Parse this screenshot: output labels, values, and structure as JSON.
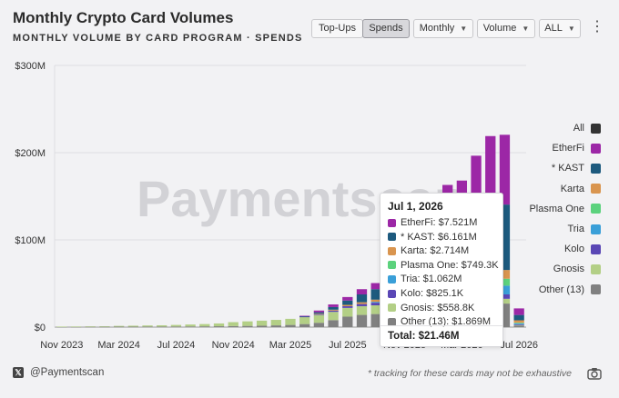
{
  "header": {
    "title": "Monthly Crypto Card Volumes",
    "subtitle": "MONTHLY VOLUME BY CARD PROGRAM · SPENDS"
  },
  "controls": {
    "topups_label": "Top-Ups",
    "spends_label": "Spends",
    "period_label": "Monthly",
    "metric_label": "Volume",
    "range_label": "ALL",
    "more_icon": "kebab-menu-icon"
  },
  "watermark": "Paymentscan",
  "footer": {
    "handle": "@Paymentscan",
    "x_icon": "x-logo-icon",
    "note": "* tracking for these cards may not be exhaustive",
    "camera_icon": "camera-icon"
  },
  "tooltip": {
    "date": "Jul 1, 2026",
    "rows": [
      {
        "label": "EtherFi: $7.521M",
        "color": "#9c27a6"
      },
      {
        "label": "* KAST: $6.161M",
        "color": "#1d5a7e"
      },
      {
        "label": "Karta: $2.714M",
        "color": "#d9954f"
      },
      {
        "label": "Plasma One: $749.3K",
        "color": "#5cd27d"
      },
      {
        "label": "Tria: $1.062M",
        "color": "#3a9fd8"
      },
      {
        "label": "Kolo: $825.1K",
        "color": "#5a47b5"
      },
      {
        "label": "Gnosis: $558.8K",
        "color": "#b3cf86"
      },
      {
        "label": "Other (13): $1.869M",
        "color": "#808080"
      }
    ],
    "total": "Total: $21.46M"
  },
  "chart_data": {
    "type": "bar",
    "stacked": true,
    "x_tick_labels": [
      "Nov 2023",
      "Mar 2024",
      "Jul 2024",
      "Nov 2024",
      "Mar 2025",
      "Jul 2025",
      "Nov 2025",
      "Mar 2026",
      "Jul 2026"
    ],
    "y_tick_labels": [
      "$0",
      "$100M",
      "$200M",
      "$300M"
    ],
    "ylim": [
      0,
      300
    ],
    "y_unit": "$M",
    "grid": true,
    "legend_position": "right",
    "categories": [
      "Nov 2023",
      "Dec 2023",
      "Jan 2024",
      "Feb 2024",
      "Mar 2024",
      "Apr 2024",
      "May 2024",
      "Jun 2024",
      "Jul 2024",
      "Aug 2024",
      "Sep 2024",
      "Oct 2024",
      "Nov 2024",
      "Dec 2024",
      "Jan 2025",
      "Feb 2025",
      "Mar 2025",
      "Apr 2025",
      "May 2025",
      "Jun 2025",
      "Jul 2025",
      "Aug 2025",
      "Sep 2025",
      "Oct 2025",
      "Nov 2025",
      "Dec 2025",
      "Jan 2026",
      "Feb 2026",
      "Mar 2026",
      "Apr 2026",
      "May 2026",
      "Jun 2026",
      "Jul 2026"
    ],
    "legend": [
      {
        "name": "All",
        "color": "#333333"
      },
      {
        "name": "EtherFi",
        "color": "#9c27a6"
      },
      {
        "name": "* KAST",
        "color": "#1d5a7e"
      },
      {
        "name": "Karta",
        "color": "#d9954f"
      },
      {
        "name": "Plasma One",
        "color": "#5cd27d"
      },
      {
        "name": "Tria",
        "color": "#3a9fd8"
      },
      {
        "name": "Kolo",
        "color": "#5a47b5"
      },
      {
        "name": "Gnosis",
        "color": "#b3cf86"
      },
      {
        "name": "Other (13)",
        "color": "#808080"
      }
    ],
    "series": [
      {
        "name": "Other (13)",
        "color": "#808080",
        "values": [
          0.3,
          0.3,
          0.4,
          0.4,
          0.5,
          0.5,
          0.6,
          0.6,
          0.7,
          0.8,
          0.9,
          1.0,
          1.2,
          1.4,
          1.6,
          2.0,
          2.5,
          3.5,
          5,
          8,
          12,
          14,
          15,
          17,
          20,
          22,
          24,
          26,
          27,
          28,
          28,
          27,
          1.869
        ]
      },
      {
        "name": "Gnosis",
        "color": "#b3cf86",
        "values": [
          0.3,
          0.4,
          0.5,
          0.6,
          0.9,
          1.1,
          1.3,
          1.5,
          1.8,
          2.2,
          2.6,
          3.2,
          4.5,
          5.2,
          5.8,
          6.3,
          7,
          8,
          9,
          9.5,
          10,
          10,
          10,
          9.5,
          9,
          8.5,
          8,
          7.5,
          7,
          6.5,
          6,
          5.5,
          0.559
        ]
      },
      {
        "name": "Kolo",
        "color": "#5a47b5",
        "values": [
          0,
          0,
          0,
          0,
          0,
          0,
          0,
          0,
          0,
          0,
          0,
          0,
          0,
          0,
          0,
          0,
          0,
          0.5,
          1,
          1.5,
          2,
          2.5,
          3,
          3.5,
          4,
          4,
          4.5,
          4.5,
          5,
          5,
          5,
          5,
          0.825
        ]
      },
      {
        "name": "Tria",
        "color": "#3a9fd8",
        "values": [
          0,
          0,
          0,
          0,
          0,
          0,
          0,
          0,
          0,
          0,
          0,
          0,
          0,
          0,
          0,
          0,
          0,
          0,
          0,
          0,
          0,
          0,
          1,
          2,
          3,
          4,
          5,
          6,
          7,
          8,
          9,
          10,
          1.062
        ]
      },
      {
        "name": "Plasma One",
        "color": "#5cd27d",
        "values": [
          0,
          0,
          0,
          0,
          0,
          0,
          0,
          0,
          0,
          0,
          0,
          0,
          0,
          0,
          0,
          0,
          0,
          0,
          0,
          0,
          0,
          0,
          0,
          0,
          0,
          2,
          3,
          4,
          5,
          6,
          7,
          8,
          0.749
        ]
      },
      {
        "name": "Karta",
        "color": "#d9954f",
        "values": [
          0,
          0,
          0,
          0,
          0,
          0,
          0,
          0,
          0,
          0,
          0,
          0,
          0,
          0,
          0,
          0,
          0,
          0,
          0.5,
          1,
          1.5,
          2,
          2.5,
          3,
          3.5,
          4,
          5,
          6,
          7,
          8,
          9,
          10,
          2.714
        ]
      },
      {
        "name": "* KAST",
        "color": "#1d5a7e",
        "values": [
          0,
          0,
          0,
          0,
          0,
          0,
          0,
          0,
          0,
          0,
          0,
          0,
          0,
          0,
          0,
          0,
          0,
          0.5,
          1.5,
          3,
          5,
          9,
          12,
          15,
          20,
          25,
          35,
          45,
          55,
          65,
          80,
          75,
          6.161
        ]
      },
      {
        "name": "EtherFi",
        "color": "#9c27a6",
        "values": [
          0,
          0,
          0,
          0,
          0,
          0,
          0,
          0,
          0,
          0,
          0,
          0,
          0,
          0,
          0,
          0,
          0,
          0.5,
          2,
          3,
          4,
          6,
          7,
          10,
          20,
          28,
          45,
          64,
          55,
          70,
          75,
          80,
          7.521
        ]
      }
    ]
  }
}
